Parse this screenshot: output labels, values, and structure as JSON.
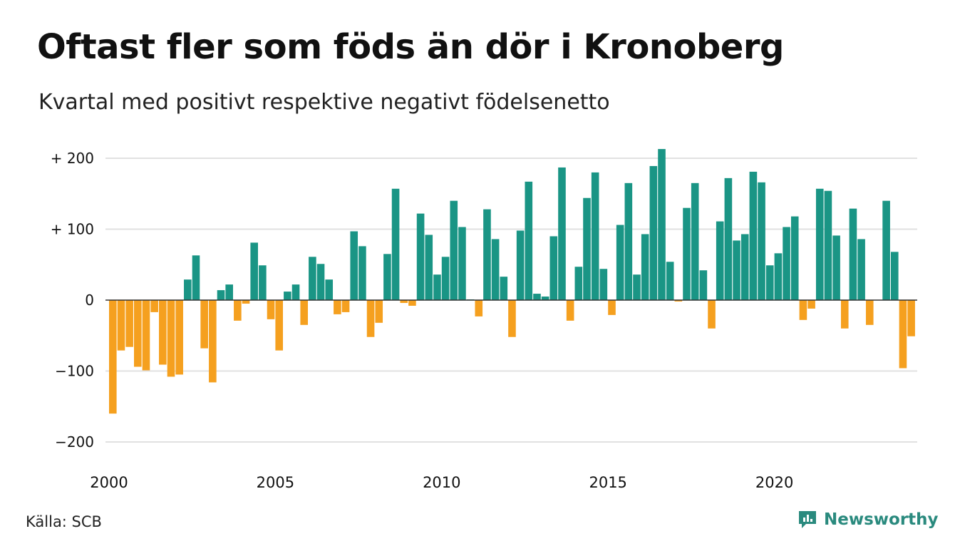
{
  "header": {
    "title": "Oftast fler som föds än dör i Kronoberg",
    "subtitle": "Kvartal med positivt respektive negativt födelsenetto"
  },
  "footer": {
    "source": "Källa: SCB",
    "brand": "Newsworthy"
  },
  "colors": {
    "positive": "#1a9585",
    "negative": "#f5a01f",
    "brand": "#2a8a7e"
  },
  "chart_data": {
    "type": "bar",
    "x_start": 2000,
    "x_step": "quarter",
    "yticks": [
      {
        "value": 200,
        "label": "+ 200"
      },
      {
        "value": 100,
        "label": "+ 100"
      },
      {
        "value": 0,
        "label": "0"
      },
      {
        "value": -100,
        "label": "−100"
      },
      {
        "value": -200,
        "label": "−200"
      }
    ],
    "xticks": [
      {
        "value": 2000,
        "label": "2000"
      },
      {
        "value": 2005,
        "label": "2005"
      },
      {
        "value": 2010,
        "label": "2010"
      },
      {
        "value": 2015,
        "label": "2015"
      },
      {
        "value": 2020,
        "label": "2020"
      }
    ],
    "ylim": [
      -215,
      215
    ],
    "grid": true,
    "values": [
      -160,
      -71,
      -66,
      -94,
      -99,
      -17,
      -91,
      -108,
      -105,
      29,
      63,
      -68,
      -116,
      14,
      22,
      -29,
      -5,
      81,
      49,
      -27,
      -71,
      12,
      22,
      -35,
      61,
      51,
      29,
      -20,
      -17,
      97,
      76,
      -52,
      -32,
      65,
      157,
      -4,
      -8,
      122,
      92,
      36,
      61,
      140,
      103,
      1,
      -23,
      128,
      86,
      33,
      -52,
      98,
      167,
      9,
      5,
      90,
      187,
      -29,
      47,
      144,
      180,
      44,
      -21,
      106,
      165,
      36,
      93,
      189,
      213,
      54,
      -2,
      130,
      165,
      42,
      -40,
      111,
      172,
      84,
      93,
      181,
      166,
      49,
      66,
      103,
      118,
      -28,
      -12,
      157,
      154,
      91,
      -40,
      129,
      86,
      -35,
      0,
      140,
      68,
      -96,
      -51
    ]
  }
}
